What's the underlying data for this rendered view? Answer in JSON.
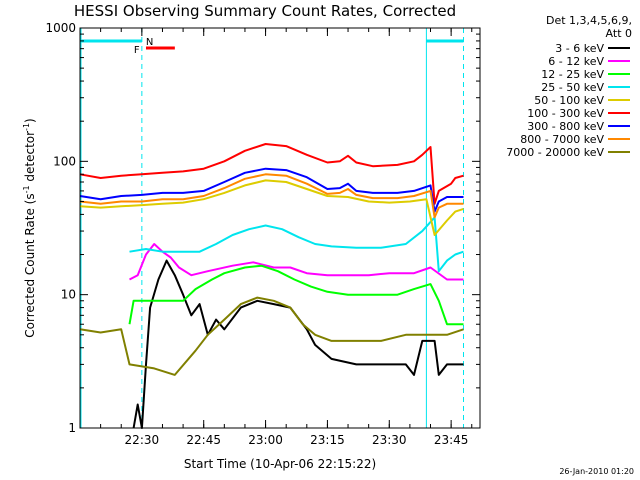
{
  "chart_data": {
    "type": "line",
    "title": "HESSI Observing Summary Count Rates, Corrected",
    "ylabel_main": "Corrected Count Rate (s",
    "ylabel_sup1": "-1",
    "ylabel_mid": " detector",
    "ylabel_sup2": "-1",
    "ylabel_end": ")",
    "xlabel": "Start Time (10-Apr-06 22:15:22)",
    "footer": "26-Jan-2010 01:20",
    "y_scale": "log",
    "ylim": [
      1,
      1000
    ],
    "y_ticks": [
      {
        "value": 1,
        "label": "1"
      },
      {
        "value": 10,
        "label": "10"
      },
      {
        "value": 100,
        "label": "100"
      },
      {
        "value": 1000,
        "label": "1000"
      }
    ],
    "x_range": [
      "22:15",
      "23:52"
    ],
    "x_ticks": [
      "22:30",
      "22:45",
      "23:00",
      "23:15",
      "23:30",
      "23:45"
    ],
    "legend_header": [
      "Det 1,3,4,5,6,9,",
      "Att 0"
    ],
    "legend_position": "right",
    "flags": [
      {
        "label": "N",
        "color": "#00e5ee"
      },
      {
        "label": "F",
        "color": "#ff0000"
      }
    ],
    "series": [
      {
        "name": "3 - 6 keV",
        "color": "#000000",
        "points": [
          [
            "22:28",
            1
          ],
          [
            "22:29",
            1.5
          ],
          [
            "22:30",
            1
          ],
          [
            "22:31",
            3
          ],
          [
            "22:32",
            8
          ],
          [
            "22:34",
            13
          ],
          [
            "22:36",
            18
          ],
          [
            "22:38",
            14
          ],
          [
            "22:40",
            10
          ],
          [
            "22:42",
            7
          ],
          [
            "22:44",
            8.5
          ],
          [
            "22:46",
            5
          ],
          [
            "22:48",
            6.5
          ],
          [
            "22:50",
            5.5
          ],
          [
            "22:54",
            8
          ],
          [
            "22:58",
            9
          ],
          [
            "23:02",
            8.5
          ],
          [
            "23:06",
            8
          ],
          [
            "23:10",
            5.5
          ],
          [
            "23:12",
            4.2
          ],
          [
            "23:16",
            3.3
          ],
          [
            "23:22",
            3
          ],
          [
            "23:28",
            3
          ],
          [
            "23:34",
            3
          ],
          [
            "23:36",
            2.5
          ],
          [
            "23:38",
            4.5
          ],
          [
            "23:41",
            4.5
          ],
          [
            "23:42",
            2.5
          ],
          [
            "23:44",
            3
          ],
          [
            "23:48",
            3
          ]
        ]
      },
      {
        "name": "6 - 12 keV",
        "color": "#ff00ff",
        "points": [
          [
            "22:27",
            13
          ],
          [
            "22:29",
            14
          ],
          [
            "22:31",
            20
          ],
          [
            "22:33",
            24
          ],
          [
            "22:35",
            21
          ],
          [
            "22:37",
            19
          ],
          [
            "22:39",
            16
          ],
          [
            "22:42",
            14
          ],
          [
            "22:46",
            15
          ],
          [
            "22:52",
            16.5
          ],
          [
            "22:57",
            17.5
          ],
          [
            "23:02",
            16
          ],
          [
            "23:06",
            16
          ],
          [
            "23:10",
            14.5
          ],
          [
            "23:15",
            14
          ],
          [
            "23:20",
            14
          ],
          [
            "23:25",
            14
          ],
          [
            "23:30",
            14.5
          ],
          [
            "23:36",
            14.5
          ],
          [
            "23:40",
            16
          ],
          [
            "23:44",
            13
          ],
          [
            "23:48",
            13
          ]
        ]
      },
      {
        "name": "12 - 25 keV",
        "color": "#00ff00",
        "points": [
          [
            "22:27",
            6
          ],
          [
            "22:28",
            9
          ],
          [
            "22:32",
            9
          ],
          [
            "22:36",
            9
          ],
          [
            "22:40",
            9
          ],
          [
            "22:43",
            11
          ],
          [
            "22:47",
            13
          ],
          [
            "22:50",
            14.5
          ],
          [
            "22:55",
            16
          ],
          [
            "22:59",
            16.5
          ],
          [
            "23:03",
            15
          ],
          [
            "23:07",
            13
          ],
          [
            "23:11",
            11.5
          ],
          [
            "23:15",
            10.5
          ],
          [
            "23:20",
            10
          ],
          [
            "23:26",
            10
          ],
          [
            "23:32",
            10
          ],
          [
            "23:36",
            11
          ],
          [
            "23:40",
            12
          ],
          [
            "23:42",
            9
          ],
          [
            "23:44",
            6
          ],
          [
            "23:48",
            6
          ]
        ]
      },
      {
        "name": "25 - 50 keV",
        "color": "#00e5ee",
        "points": [
          [
            "22:27",
            21
          ],
          [
            "22:31",
            22
          ],
          [
            "22:35",
            21
          ],
          [
            "22:40",
            21
          ],
          [
            "22:44",
            21
          ],
          [
            "22:48",
            24
          ],
          [
            "22:52",
            28
          ],
          [
            "22:56",
            31
          ],
          [
            "23:00",
            33
          ],
          [
            "23:04",
            31
          ],
          [
            "23:08",
            27
          ],
          [
            "23:12",
            24
          ],
          [
            "23:16",
            23
          ],
          [
            "23:22",
            22.5
          ],
          [
            "23:28",
            22.5
          ],
          [
            "23:34",
            24
          ],
          [
            "23:38",
            30
          ],
          [
            "23:41",
            38
          ],
          [
            "23:42",
            15
          ],
          [
            "23:44",
            18
          ],
          [
            "23:46",
            20
          ],
          [
            "23:48",
            21
          ]
        ]
      },
      {
        "name": "50 - 100 keV",
        "color": "#ddcc00",
        "points": [
          [
            "22:15",
            46
          ],
          [
            "22:20",
            45
          ],
          [
            "22:25",
            46
          ],
          [
            "22:30",
            47
          ],
          [
            "22:35",
            48
          ],
          [
            "22:40",
            49
          ],
          [
            "22:45",
            52
          ],
          [
            "22:50",
            58
          ],
          [
            "22:55",
            66
          ],
          [
            "23:00",
            72
          ],
          [
            "23:05",
            70
          ],
          [
            "23:10",
            62
          ],
          [
            "23:15",
            55
          ],
          [
            "23:20",
            54
          ],
          [
            "23:25",
            50
          ],
          [
            "23:30",
            49
          ],
          [
            "23:35",
            50
          ],
          [
            "23:39",
            52
          ],
          [
            "23:41",
            28
          ],
          [
            "23:44",
            36
          ],
          [
            "23:46",
            42
          ],
          [
            "23:48",
            44
          ]
        ]
      },
      {
        "name": "100 - 300 keV",
        "color": "#ff0000",
        "points": [
          [
            "22:15",
            80
          ],
          [
            "22:20",
            75
          ],
          [
            "22:25",
            78
          ],
          [
            "22:30",
            80
          ],
          [
            "22:35",
            82
          ],
          [
            "22:40",
            84
          ],
          [
            "22:45",
            88
          ],
          [
            "22:50",
            100
          ],
          [
            "22:55",
            120
          ],
          [
            "23:00",
            135
          ],
          [
            "23:05",
            130
          ],
          [
            "23:10",
            112
          ],
          [
            "23:15",
            98
          ],
          [
            "23:18",
            100
          ],
          [
            "23:20",
            110
          ],
          [
            "23:22",
            98
          ],
          [
            "23:26",
            92
          ],
          [
            "23:32",
            94
          ],
          [
            "23:36",
            100
          ],
          [
            "23:38",
            112
          ],
          [
            "23:40",
            128
          ],
          [
            "23:41",
            48
          ],
          [
            "23:42",
            60
          ],
          [
            "23:45",
            68
          ],
          [
            "23:46",
            75
          ],
          [
            "23:48",
            78
          ]
        ]
      },
      {
        "name": "300 - 800 keV",
        "color": "#0000ff",
        "points": [
          [
            "22:15",
            55
          ],
          [
            "22:20",
            52
          ],
          [
            "22:25",
            55
          ],
          [
            "22:30",
            56
          ],
          [
            "22:35",
            58
          ],
          [
            "22:40",
            58
          ],
          [
            "22:45",
            60
          ],
          [
            "22:50",
            70
          ],
          [
            "22:55",
            82
          ],
          [
            "23:00",
            88
          ],
          [
            "23:05",
            86
          ],
          [
            "23:10",
            76
          ],
          [
            "23:15",
            62
          ],
          [
            "23:18",
            63
          ],
          [
            "23:20",
            68
          ],
          [
            "23:22",
            60
          ],
          [
            "23:26",
            58
          ],
          [
            "23:32",
            58
          ],
          [
            "23:36",
            60
          ],
          [
            "23:40",
            66
          ],
          [
            "23:41",
            42
          ],
          [
            "23:42",
            50
          ],
          [
            "23:44",
            54
          ],
          [
            "23:48",
            54
          ]
        ]
      },
      {
        "name": "800 - 7000 keV",
        "color": "#ff8800",
        "points": [
          [
            "22:15",
            50
          ],
          [
            "22:20",
            48
          ],
          [
            "22:25",
            50
          ],
          [
            "22:30",
            50
          ],
          [
            "22:35",
            52
          ],
          [
            "22:40",
            52
          ],
          [
            "22:45",
            55
          ],
          [
            "22:50",
            63
          ],
          [
            "22:55",
            74
          ],
          [
            "23:00",
            80
          ],
          [
            "23:05",
            78
          ],
          [
            "23:10",
            68
          ],
          [
            "23:15",
            57
          ],
          [
            "23:18",
            58
          ],
          [
            "23:20",
            62
          ],
          [
            "23:22",
            56
          ],
          [
            "23:26",
            53
          ],
          [
            "23:32",
            53
          ],
          [
            "23:36",
            55
          ],
          [
            "23:40",
            60
          ],
          [
            "23:41",
            38
          ],
          [
            "23:42",
            45
          ],
          [
            "23:44",
            48
          ],
          [
            "23:48",
            48
          ]
        ]
      },
      {
        "name": "7000 - 20000 keV",
        "color": "#808000",
        "points": [
          [
            "22:15",
            5.5
          ],
          [
            "22:20",
            5.2
          ],
          [
            "22:25",
            5.5
          ],
          [
            "22:27",
            3
          ],
          [
            "22:33",
            2.8
          ],
          [
            "22:38",
            2.5
          ],
          [
            "22:43",
            3.8
          ],
          [
            "22:46",
            5
          ],
          [
            "22:50",
            6.5
          ],
          [
            "22:54",
            8.5
          ],
          [
            "22:58",
            9.5
          ],
          [
            "23:02",
            9
          ],
          [
            "23:06",
            8
          ],
          [
            "23:09",
            6
          ],
          [
            "23:12",
            5
          ],
          [
            "23:16",
            4.5
          ],
          [
            "23:22",
            4.5
          ],
          [
            "23:28",
            4.5
          ],
          [
            "23:34",
            5
          ],
          [
            "23:39",
            5
          ],
          [
            "23:42",
            5
          ],
          [
            "23:44",
            5
          ],
          [
            "23:48",
            5.5
          ]
        ]
      }
    ]
  }
}
